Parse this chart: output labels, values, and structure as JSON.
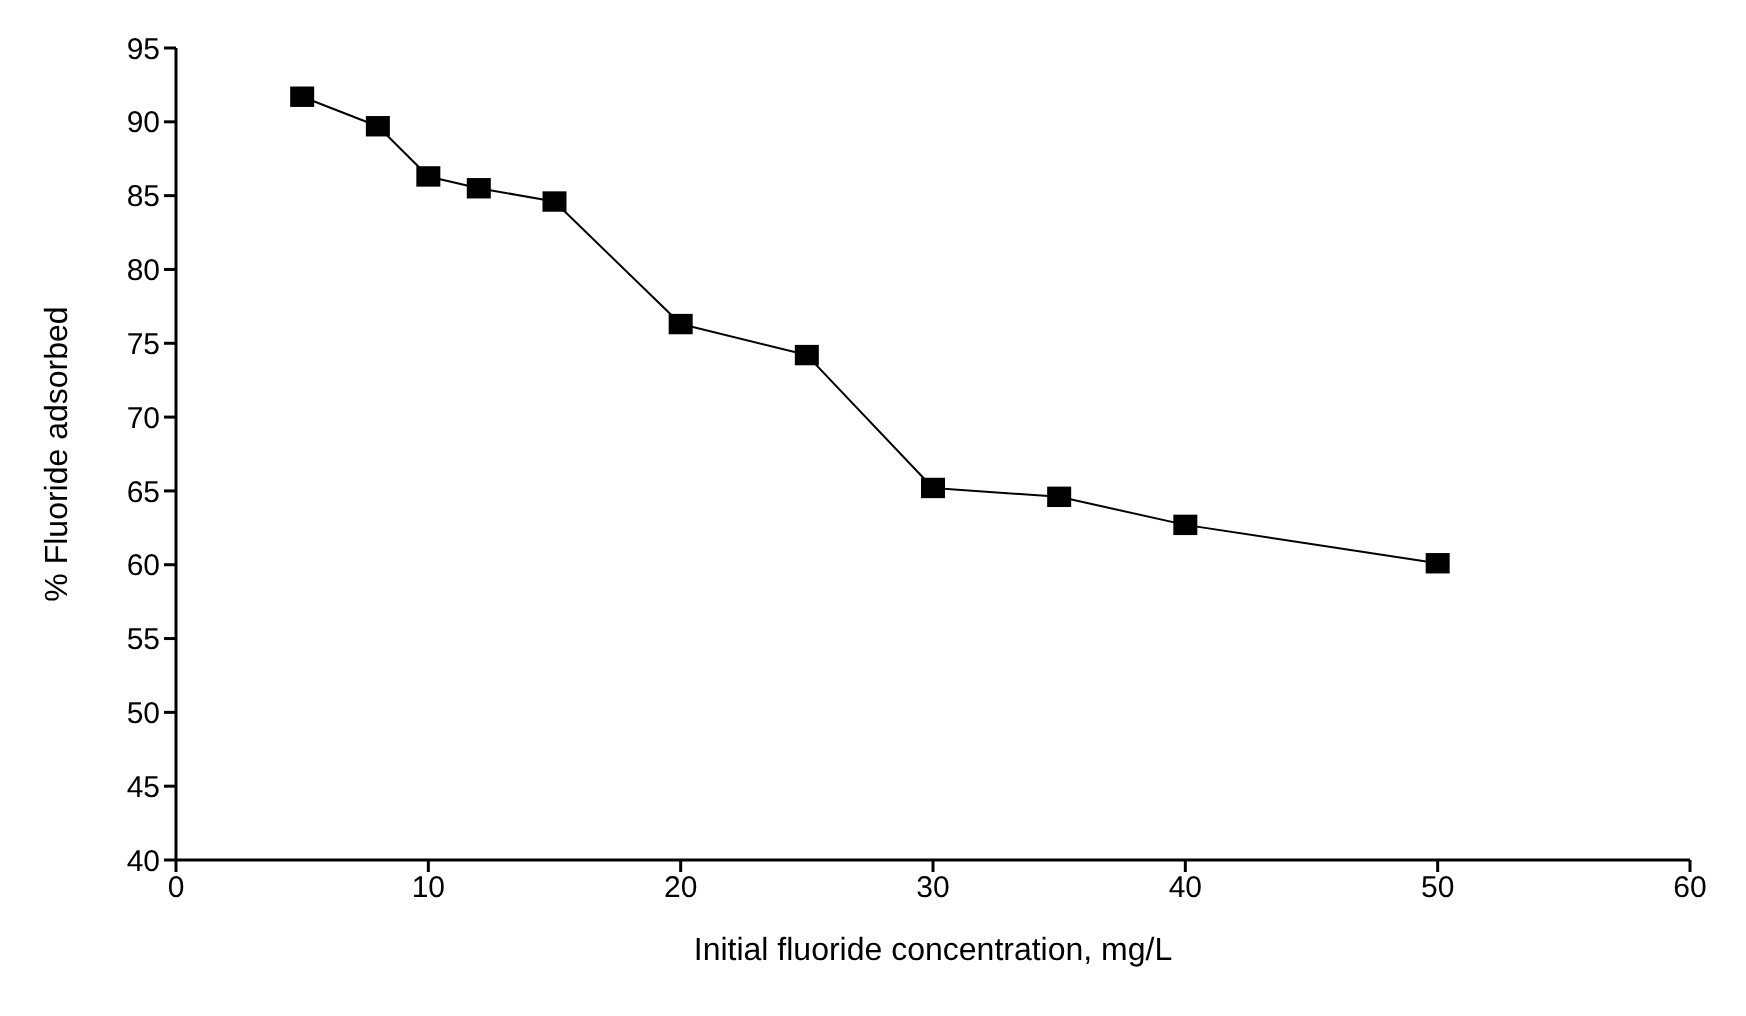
{
  "chart_data": {
    "type": "line",
    "xlabel": "Initial fluoride concentration, mg/L",
    "ylabel": "% Fluoride adsorbed",
    "x": [
      5,
      8,
      10,
      12,
      15,
      20,
      25,
      30,
      35,
      40,
      50
    ],
    "series": [
      {
        "color": "#000000",
        "values": [
          91.7,
          89.7,
          86.3,
          85.5,
          84.6,
          76.3,
          74.2,
          65.2,
          64.6,
          62.7,
          60.1
        ]
      }
    ],
    "xlim": [
      0,
      60
    ],
    "xticks": [
      0,
      10,
      20,
      30,
      40,
      50,
      60
    ],
    "ylim": [
      40,
      95
    ],
    "yticks": [
      40,
      45,
      50,
      55,
      60,
      65,
      70,
      75,
      80,
      85,
      90,
      95
    ],
    "marker": "square",
    "line_style": "solid",
    "grid": false,
    "legend": false
  }
}
